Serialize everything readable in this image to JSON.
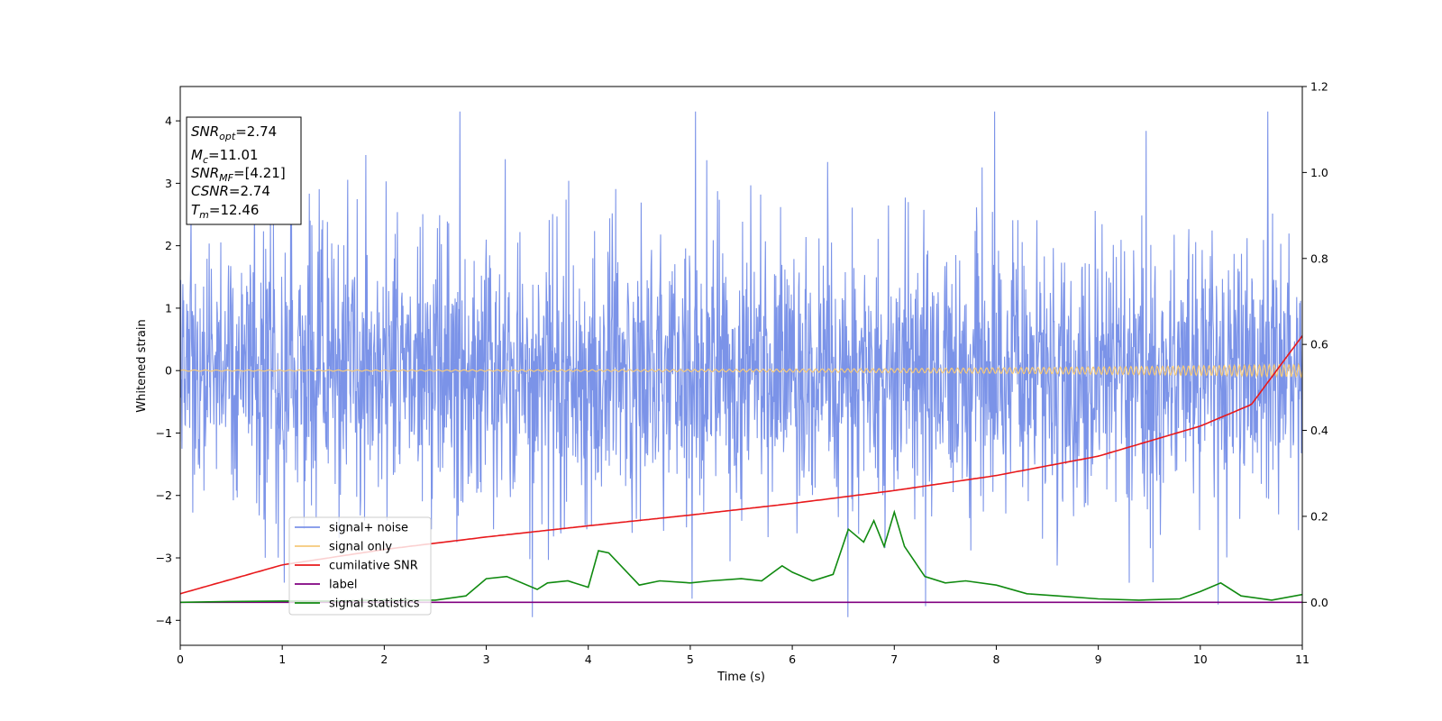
{
  "chart_data": {
    "type": "line",
    "title": "",
    "xlabel": "Time (s)",
    "ylabel": "Whitened strain",
    "xlim": [
      0,
      11
    ],
    "ylim_left": [
      -4.4,
      4.55
    ],
    "ylim_right": [
      -0.1,
      1.2
    ],
    "x_ticks": [
      "0",
      "1",
      "2",
      "3",
      "4",
      "5",
      "6",
      "7",
      "8",
      "9",
      "10",
      "11"
    ],
    "y_ticks_left": [
      "−4",
      "−3",
      "−2",
      "−1",
      "0",
      "1",
      "2",
      "3",
      "4"
    ],
    "y_ticks_right": [
      "0.0",
      "0.2",
      "0.4",
      "0.6",
      "0.8",
      "1.0",
      "1.2"
    ],
    "grid": false,
    "legend_placement": "lower-left",
    "annotation_box": {
      "lines": [
        {
          "main": "SNR",
          "sub": "opt",
          "rest": "=2.74"
        },
        {
          "main": "M",
          "sub": "c",
          "rest": "=11.01"
        },
        {
          "main": "SNR",
          "sub": "MF",
          "rest": "=[4.21]"
        },
        {
          "main": "CSNR",
          "sub": "",
          "rest": "=2.74"
        },
        {
          "main": "T",
          "sub": "m",
          "rest": "=12.46"
        }
      ]
    },
    "series": [
      {
        "name": "signal+ noise",
        "color": "#7b93e8",
        "axis": "left",
        "kind": "noise",
        "approx_envelope": [
          -3.9,
          4.1
        ]
      },
      {
        "name": "signal only",
        "color": "#f5c97a",
        "axis": "left",
        "kind": "chirp",
        "amplitude_start": 0.01,
        "amplitude_end": 0.1
      },
      {
        "name": "cumilative SNR",
        "color": "#e8191c",
        "axis": "right",
        "x": [
          0,
          1,
          2,
          3,
          4,
          5,
          6,
          7,
          8,
          9,
          10,
          10.5,
          11
        ],
        "y": [
          0.02,
          0.087,
          0.123,
          0.152,
          0.178,
          0.203,
          0.23,
          0.26,
          0.295,
          0.34,
          0.41,
          0.46,
          0.62
        ]
      },
      {
        "name": "label",
        "color": "#800080",
        "axis": "right",
        "x": [
          0,
          11
        ],
        "y": [
          0,
          0
        ]
      },
      {
        "name": "signal statistics",
        "color": "#108a10",
        "axis": "right",
        "x": [
          0,
          0.5,
          1,
          1.5,
          2,
          2.5,
          2.8,
          3.0,
          3.2,
          3.5,
          3.6,
          3.8,
          4.0,
          4.1,
          4.2,
          4.5,
          4.7,
          5.0,
          5.2,
          5.5,
          5.7,
          5.9,
          6.0,
          6.2,
          6.4,
          6.55,
          6.7,
          6.8,
          6.9,
          7.0,
          7.1,
          7.3,
          7.5,
          7.7,
          8.0,
          8.3,
          8.6,
          9.0,
          9.4,
          9.8,
          10.0,
          10.2,
          10.4,
          10.7,
          11
        ],
        "y": [
          0.0,
          0.002,
          0.003,
          0.003,
          0.005,
          0.005,
          0.015,
          0.055,
          0.06,
          0.03,
          0.045,
          0.05,
          0.035,
          0.12,
          0.115,
          0.04,
          0.05,
          0.045,
          0.05,
          0.055,
          0.05,
          0.085,
          0.07,
          0.05,
          0.065,
          0.17,
          0.14,
          0.19,
          0.13,
          0.21,
          0.13,
          0.06,
          0.045,
          0.05,
          0.04,
          0.02,
          0.015,
          0.008,
          0.005,
          0.008,
          0.025,
          0.045,
          0.015,
          0.005,
          0.018
        ]
      }
    ]
  }
}
